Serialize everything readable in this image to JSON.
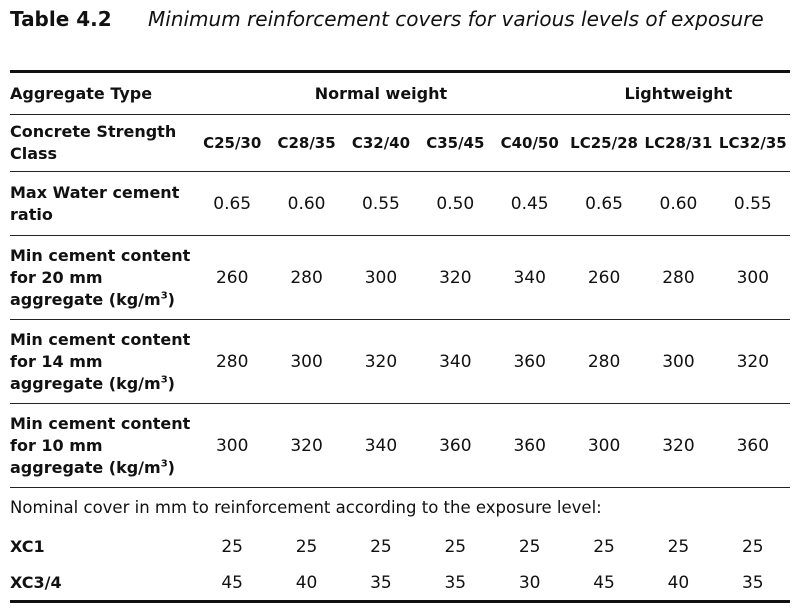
{
  "caption": {
    "label": "Table 4.2",
    "title": "Minimum reinforcement covers for various levels of exposure"
  },
  "header": {
    "aggregate_type": "Aggregate Type",
    "normal_weight": "Normal weight",
    "lightweight": "Lightweight",
    "strength_class_label": "Concrete Strength Class",
    "classes": [
      "C25/30",
      "C28/35",
      "C32/40",
      "C35/45",
      "C40/50",
      "LC25/28",
      "LC28/31",
      "LC32/35"
    ]
  },
  "rows": {
    "water_cement": {
      "label": "Max Water cement ratio",
      "values": [
        "0.65",
        "0.60",
        "0.55",
        "0.50",
        "0.45",
        "0.65",
        "0.60",
        "0.55"
      ]
    },
    "cement_20": {
      "label_main": "Min cement content for 20 mm aggregate (kg/m",
      "label_sup": "3",
      "label_end": ")",
      "values": [
        "260",
        "280",
        "300",
        "320",
        "340",
        "260",
        "280",
        "300"
      ]
    },
    "cement_14": {
      "label_main": "Min cement content for 14 mm aggregate (kg/m",
      "label_sup": "3",
      "label_end": ")",
      "values": [
        "280",
        "300",
        "320",
        "340",
        "360",
        "280",
        "300",
        "320"
      ]
    },
    "cement_10": {
      "label_main": "Min cement content for 10 mm aggregate (kg/m",
      "label_sup": "3",
      "label_end": ")",
      "values": [
        "300",
        "320",
        "340",
        "360",
        "360",
        "300",
        "320",
        "360"
      ]
    }
  },
  "note": "Nominal cover in mm to reinforcement according to the exposure level:",
  "exposure": {
    "xc1": {
      "label": "XC1",
      "values": [
        "25",
        "25",
        "25",
        "25",
        "25",
        "25",
        "25",
        "25"
      ]
    },
    "xc34": {
      "label": "XC3/4",
      "values": [
        "45",
        "40",
        "35",
        "35",
        "30",
        "45",
        "40",
        "35"
      ]
    }
  }
}
